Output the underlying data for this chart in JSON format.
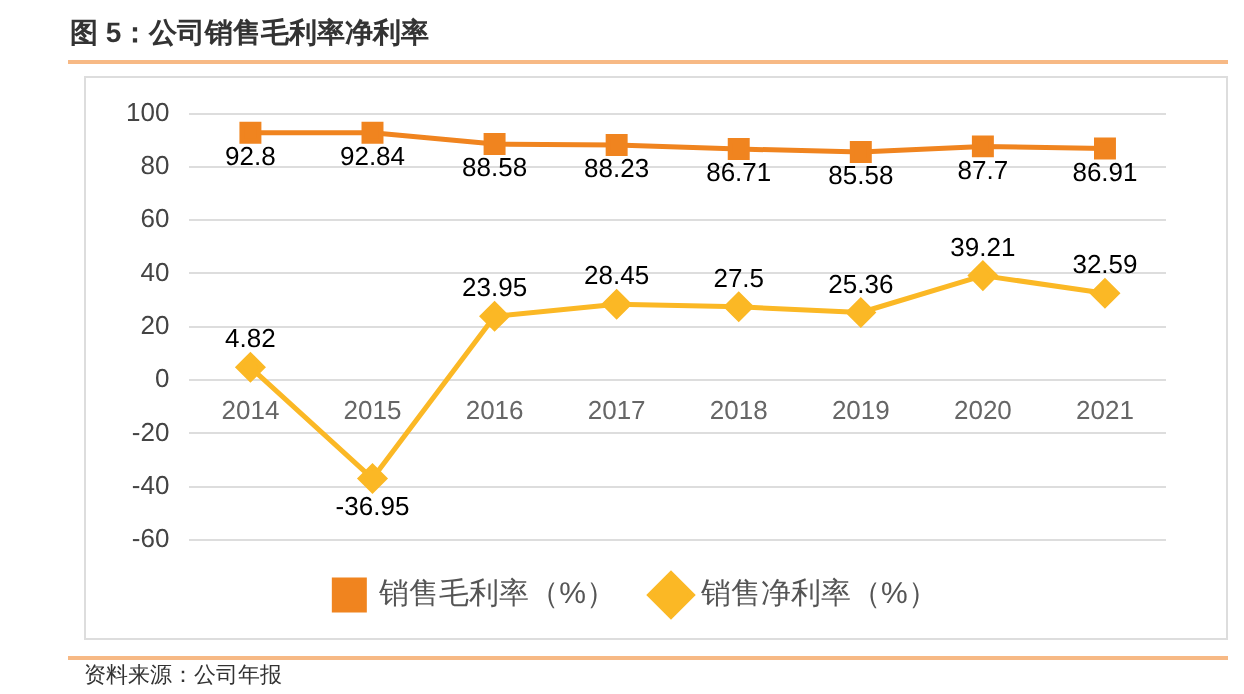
{
  "chart_data": {
    "type": "line",
    "title": "图 5：公司销售毛利率净利率",
    "categories": [
      "2014",
      "2015",
      "2016",
      "2017",
      "2018",
      "2019",
      "2020",
      "2021"
    ],
    "series": [
      {
        "name": "销售毛利率（%）",
        "color": "#f0841f",
        "values": [
          92.8,
          92.84,
          88.58,
          88.23,
          86.71,
          85.58,
          87.7,
          86.91
        ],
        "marker": "square"
      },
      {
        "name": "销售净利率（%）",
        "color": "#fbb825",
        "values": [
          4.82,
          -36.95,
          23.95,
          28.45,
          27.5,
          25.36,
          39.21,
          32.59
        ],
        "marker": "diamond"
      }
    ],
    "ylim": [
      -60,
      100
    ],
    "yticks": [
      -60,
      -40,
      -20,
      0,
      20,
      40,
      60,
      80,
      100
    ],
    "grid": "y",
    "legend": "bottom",
    "data_labels": true,
    "annotations": [
      "资料来源：公司年报"
    ]
  }
}
